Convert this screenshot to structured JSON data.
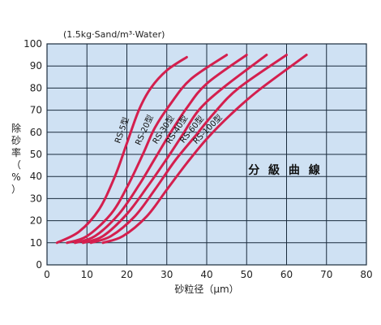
{
  "chart_data": {
    "type": "line",
    "note": "(1.5kg·Sand/m³·Water)",
    "inner_title": "分 級 曲 線",
    "xlabel": "砂粒径（μm）",
    "ylabel": "除砂率（%）",
    "xlim": [
      0,
      80
    ],
    "ylim": [
      0,
      100
    ],
    "x_ticks": [
      0,
      10,
      20,
      30,
      40,
      50,
      60,
      70,
      80
    ],
    "y_ticks": [
      0,
      10,
      20,
      30,
      40,
      50,
      60,
      70,
      80,
      90,
      100
    ],
    "grid": true,
    "line_color": "#d41f4e",
    "plot_background": "#cfe1f3",
    "grid_color": "#1a2b3c",
    "series": [
      {
        "name": "RS-5型",
        "x": [
          2.5,
          8,
          13,
          17,
          20,
          23,
          26,
          30,
          35
        ],
        "y": [
          10,
          15,
          25,
          40,
          55,
          70,
          80,
          88,
          94
        ]
      },
      {
        "name": "RS-20型",
        "x": [
          5,
          10,
          16,
          20,
          24,
          27,
          31,
          36,
          45
        ],
        "y": [
          10,
          13,
          23,
          35,
          50,
          62,
          73,
          84,
          95
        ]
      },
      {
        "name": "RS-30型",
        "x": [
          7,
          12,
          18,
          23,
          27,
          31,
          35,
          40,
          50
        ],
        "y": [
          10,
          13,
          23,
          36,
          48,
          60,
          71,
          82,
          95
        ]
      },
      {
        "name": "RS-40型",
        "x": [
          9,
          14,
          20,
          25,
          30,
          34,
          38,
          44,
          55
        ],
        "y": [
          10,
          13,
          23,
          35,
          48,
          59,
          70,
          80,
          95
        ]
      },
      {
        "name": "RS-60型",
        "x": [
          11,
          16,
          22,
          27,
          32,
          37,
          42,
          48,
          60
        ],
        "y": [
          10,
          13,
          22,
          34,
          47,
          58,
          69,
          80,
          95
        ]
      },
      {
        "name": "RS-100型",
        "x": [
          14,
          19,
          25,
          30,
          35,
          40,
          46,
          53,
          65
        ],
        "y": [
          10,
          13,
          22,
          34,
          46,
          57,
          68,
          79,
          95
        ]
      }
    ]
  }
}
